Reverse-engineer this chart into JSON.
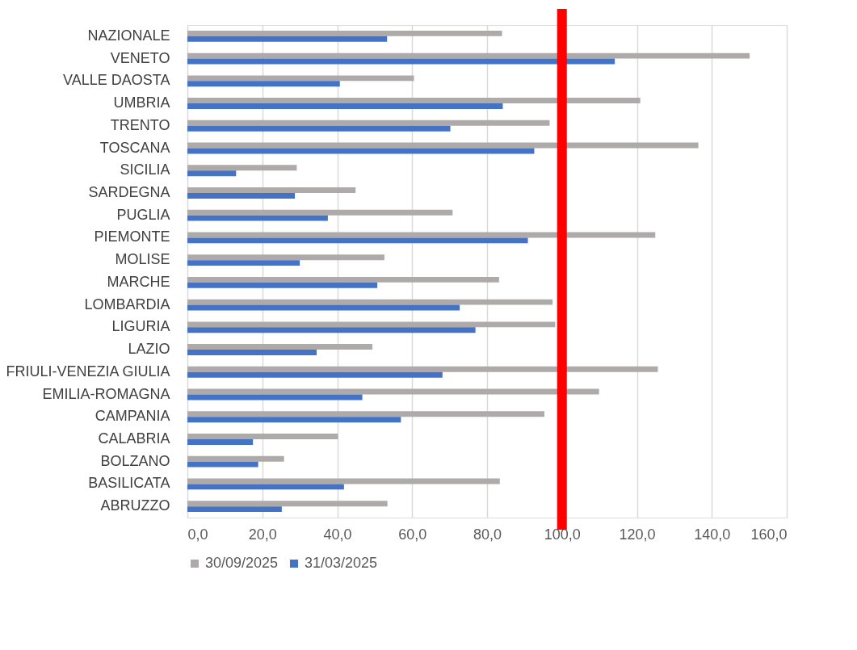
{
  "chart_data": {
    "type": "bar",
    "orientation": "horizontal",
    "categories": [
      "NAZIONALE",
      "VENETO",
      "VALLE DAOSTA",
      "UMBRIA",
      "TRENTO",
      "TOSCANA",
      "SICILIA",
      "SARDEGNA",
      "PUGLIA",
      "PIEMONTE",
      "MOLISE",
      "MARCHE ",
      "LOMBARDIA",
      "LIGURIA",
      "LAZIO",
      "FRIULI-VENEZIA GIULIA",
      "EMILIA-ROMAGNA",
      "CAMPANIA",
      "CALABRIA",
      "BOLZANO",
      "BASILICATA",
      "ABRUZZO"
    ],
    "series": [
      {
        "name": "30/09/2025",
        "color": "#aeaaaa",
        "values": [
          84.0,
          150.1,
          60.5,
          120.9,
          96.7,
          136.4,
          29.2,
          44.9,
          70.8,
          124.9,
          52.6,
          83.2,
          97.5,
          98.2,
          49.4,
          125.6,
          109.9,
          95.3,
          40.2,
          25.8,
          83.4,
          53.4
        ]
      },
      {
        "name": "31/03/2025",
        "color": "#4472c4",
        "values": [
          53.3,
          114.1,
          40.7,
          84.2,
          70.2,
          92.6,
          13.0,
          28.7,
          37.5,
          90.9,
          30.0,
          50.7,
          72.7,
          76.9,
          34.5,
          68.1,
          46.7,
          57.0,
          17.5,
          18.9,
          41.8,
          25.2
        ]
      }
    ],
    "xlim": [
      0,
      160
    ],
    "xticks": [
      {
        "value": 0,
        "label": "0,0"
      },
      {
        "value": 20,
        "label": "20,0"
      },
      {
        "value": 40,
        "label": "40,0"
      },
      {
        "value": 60,
        "label": "60,0"
      },
      {
        "value": 80,
        "label": "80,0"
      },
      {
        "value": 100,
        "label": "100,0"
      },
      {
        "value": 120,
        "label": "120,0"
      },
      {
        "value": 140,
        "label": "140,0"
      },
      {
        "value": 160,
        "label": "160,0"
      }
    ],
    "ref_lines": [
      {
        "axis": "x",
        "value": 100,
        "color": "#ff0000"
      }
    ],
    "grid": "x",
    "legend": "bottom"
  }
}
